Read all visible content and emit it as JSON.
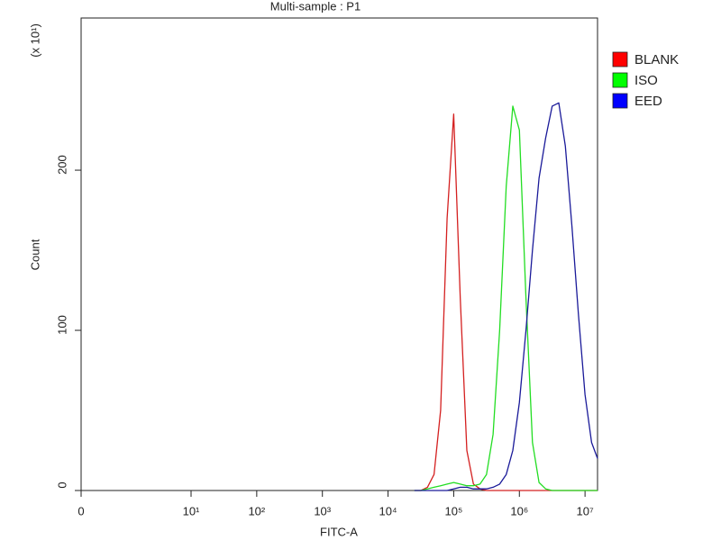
{
  "chart_data": {
    "type": "line",
    "title": "Multi-sample : P1",
    "x_label": "FITC-A",
    "y_label": "Count",
    "y_multiplier": "(x 10¹)",
    "xscale": "logicle",
    "xlim": [
      0,
      15500000
    ],
    "xticks": [
      0,
      {
        "value": 10,
        "label": "10¹"
      },
      {
        "value": 100,
        "label": "10²"
      },
      {
        "value": 1000,
        "label": "10³"
      },
      {
        "value": 10000,
        "label": "10⁴"
      },
      {
        "value": 100000,
        "label": "10⁵"
      },
      {
        "value": 1000000,
        "label": "10⁶"
      },
      {
        "value": 10000000,
        "label": "10⁷"
      }
    ],
    "ylim": [
      0,
      295
    ],
    "yticks": [
      0,
      100,
      200
    ],
    "legend": "right",
    "x": [
      25119,
      31623,
      39811,
      50119,
      63096,
      79433,
      100000,
      125893,
      158489,
      199526,
      251189,
      316228,
      398107,
      501187,
      630957,
      794328,
      1000000,
      1258925,
      1584893,
      1995262,
      2511886,
      3162278,
      3981072,
      5011872,
      6309573,
      7943282,
      10000000,
      12589254,
      15500000
    ],
    "series": [
      {
        "name": "BLANK",
        "color": "#d42020",
        "legend_color": "#ff0000",
        "values": [
          0,
          0,
          2,
          10,
          50,
          170,
          235,
          120,
          25,
          4,
          1,
          0,
          0,
          0,
          0,
          0,
          0,
          0,
          0,
          0,
          0,
          0,
          0,
          0,
          0,
          0,
          0,
          0,
          0
        ]
      },
      {
        "name": "ISO",
        "color": "#22dd22",
        "legend_color": "#00ff00",
        "values": [
          0,
          0,
          1,
          2,
          3,
          4,
          5,
          4,
          3,
          3,
          4,
          10,
          35,
          100,
          190,
          240,
          225,
          120,
          30,
          5,
          1,
          0,
          0,
          0,
          0,
          0,
          0,
          0,
          0
        ]
      },
      {
        "name": "EED",
        "color": "#1a1a99",
        "legend_color": "#0000ff",
        "values": [
          0,
          0,
          0,
          0,
          0,
          0,
          1,
          2,
          2,
          1,
          1,
          1,
          2,
          4,
          10,
          25,
          55,
          100,
          150,
          195,
          220,
          240,
          242,
          215,
          165,
          110,
          60,
          30,
          20
        ]
      }
    ]
  }
}
